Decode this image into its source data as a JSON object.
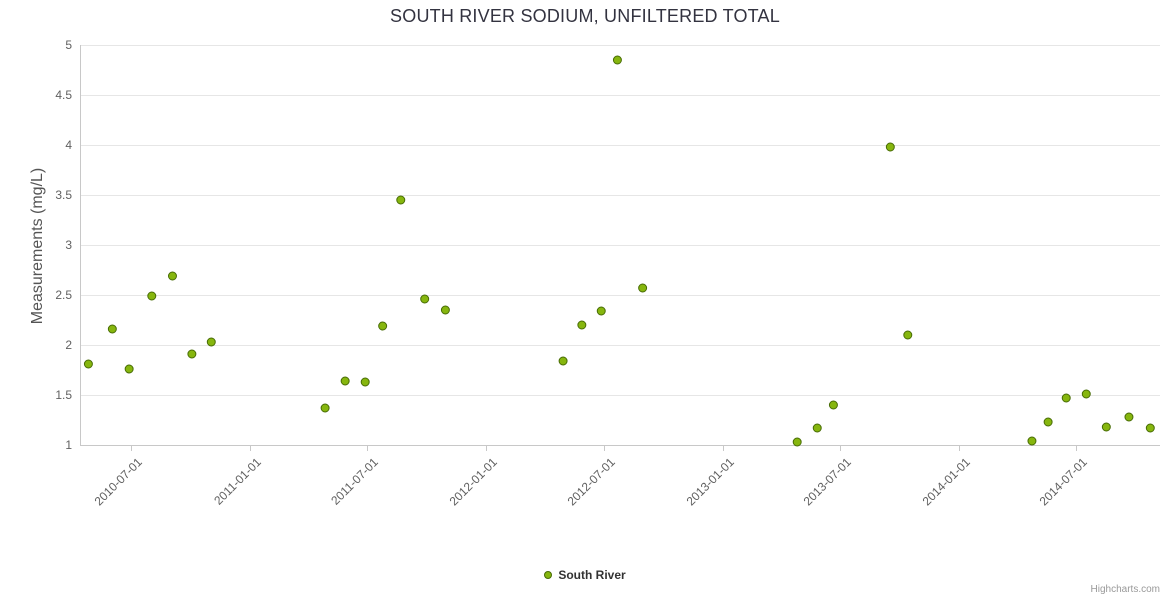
{
  "title": "SOUTH RIVER SODIUM, UNFILTERED TOTAL",
  "credits": "Highcharts.com",
  "legend": {
    "label": "South River"
  },
  "colors": {
    "point_fill": "#86b60e",
    "point_stroke": "#476b05",
    "gridline": "#e6e6e6",
    "axis_line": "#c8c8c8",
    "tick": "#c8c8c8"
  },
  "chart_data": {
    "type": "scatter",
    "title": "SOUTH RIVER SODIUM, UNFILTERED TOTAL",
    "xlabel": "",
    "ylabel": "Measurements (mg/L)",
    "ylim": [
      1,
      5
    ],
    "yticks": [
      1,
      1.5,
      2,
      2.5,
      3,
      3.5,
      4,
      4.5,
      5
    ],
    "xlim": [
      "2010-04-13",
      "2014-11-08"
    ],
    "xticks": [
      "2010-07-01",
      "2011-01-01",
      "2011-07-01",
      "2012-01-01",
      "2012-07-01",
      "2013-01-01",
      "2013-07-01",
      "2014-01-01",
      "2014-07-01"
    ],
    "grid": true,
    "legend_position": "bottom",
    "series": [
      {
        "name": "South River",
        "color": "#86b60e",
        "points": [
          {
            "x": "2010-04-26",
            "y": 1.81
          },
          {
            "x": "2010-06-02",
            "y": 2.16
          },
          {
            "x": "2010-06-28",
            "y": 1.76
          },
          {
            "x": "2010-08-02",
            "y": 2.49
          },
          {
            "x": "2010-09-03",
            "y": 2.69
          },
          {
            "x": "2010-10-03",
            "y": 1.91
          },
          {
            "x": "2010-11-02",
            "y": 2.03
          },
          {
            "x": "2011-04-27",
            "y": 1.37
          },
          {
            "x": "2011-05-28",
            "y": 1.64
          },
          {
            "x": "2011-06-28",
            "y": 1.63
          },
          {
            "x": "2011-07-25",
            "y": 2.19
          },
          {
            "x": "2011-08-22",
            "y": 3.45
          },
          {
            "x": "2011-09-28",
            "y": 2.46
          },
          {
            "x": "2011-10-30",
            "y": 2.35
          },
          {
            "x": "2012-04-29",
            "y": 1.84
          },
          {
            "x": "2012-05-28",
            "y": 2.2
          },
          {
            "x": "2012-06-27",
            "y": 2.34
          },
          {
            "x": "2012-07-22",
            "y": 4.85
          },
          {
            "x": "2012-08-30",
            "y": 2.57
          },
          {
            "x": "2013-04-26",
            "y": 1.03
          },
          {
            "x": "2013-05-27",
            "y": 1.17
          },
          {
            "x": "2013-06-21",
            "y": 1.4
          },
          {
            "x": "2013-09-17",
            "y": 3.98
          },
          {
            "x": "2013-10-14",
            "y": 2.1
          },
          {
            "x": "2014-04-24",
            "y": 1.04
          },
          {
            "x": "2014-05-19",
            "y": 1.23
          },
          {
            "x": "2014-06-16",
            "y": 1.47
          },
          {
            "x": "2014-07-17",
            "y": 1.51
          },
          {
            "x": "2014-08-17",
            "y": 1.18
          },
          {
            "x": "2014-09-21",
            "y": 1.28
          },
          {
            "x": "2014-10-24",
            "y": 1.17
          }
        ]
      }
    ]
  }
}
